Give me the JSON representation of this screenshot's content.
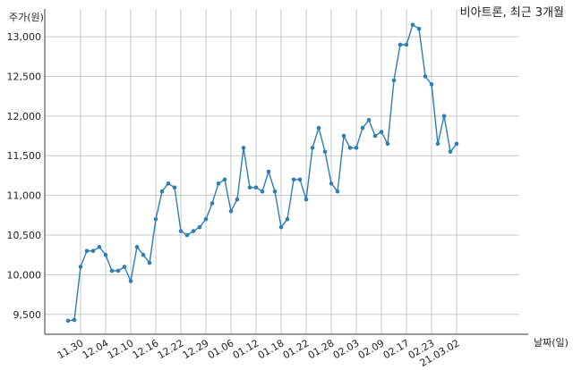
{
  "chart_data": {
    "type": "line",
    "title": "비아트론, 최근 3개월",
    "ylabel": "주가(원)",
    "xlabel": "날짜(일)",
    "ylim": [
      9250,
      13350
    ],
    "yticks": [
      9500,
      10000,
      10500,
      11000,
      11500,
      12000,
      12500,
      13000
    ],
    "ytick_labels": [
      "9,500",
      "10,000",
      "10,500",
      "11,000",
      "11,500",
      "12,000",
      "12,500",
      "13,000"
    ],
    "xtick_labels": [
      "11.30",
      "12.04",
      "12.10",
      "12.16",
      "12.22",
      "12.29",
      "01.06",
      "01.12",
      "01.18",
      "01.22",
      "01.28",
      "02.03",
      "02.09",
      "02.17",
      "02.23",
      "21.03.02"
    ],
    "xtick_indices": [
      2,
      6,
      10,
      14,
      18,
      22,
      26,
      30,
      34,
      38,
      42,
      46,
      50,
      54,
      58,
      62
    ],
    "grid": true,
    "color": "#2e7db4",
    "series": [
      {
        "values": [
          9420,
          9430,
          10100,
          10300,
          10300,
          10350,
          10250,
          10050,
          10050,
          10100,
          9920,
          10350,
          10250,
          10150,
          10700,
          11050,
          11150,
          11100,
          10550,
          10500,
          10550,
          10600,
          10700,
          10900,
          11150,
          11200,
          10800,
          10950,
          11600,
          11100,
          11100,
          11050,
          11300,
          11050,
          10600,
          10700,
          11200,
          11200,
          10950,
          11600,
          11850,
          11550,
          11150,
          11050,
          11750,
          11600,
          11600,
          11850,
          11950,
          11750,
          11800,
          11650,
          12450,
          12900,
          12900,
          13150,
          13100,
          12500,
          12400,
          11650,
          12000,
          11550,
          11650
        ]
      }
    ]
  }
}
